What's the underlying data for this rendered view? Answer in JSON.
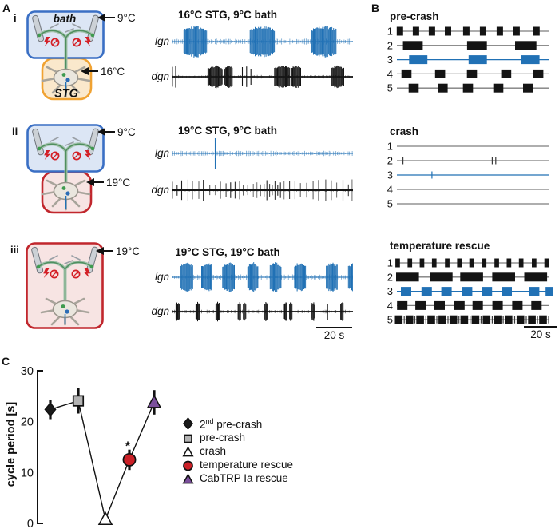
{
  "colors": {
    "blue": "#2171b5",
    "black": "#141414",
    "gray_line": "#7d7d7d",
    "bath_border": "#3a6fc4",
    "bath_fill": "#dce6f5",
    "stg_orange_border": "#f0a232",
    "stg_orange_fill": "#fae8cc",
    "red_border": "#c1272d",
    "red_fill": "#f7e4e3",
    "bolt_red": "#d42027",
    "nerve_green": "#4f8f5f",
    "nerve_light": "#a3c2ac",
    "electrode_fill": "#ccd1d6",
    "electrode_stroke": "#70757c",
    "ganglion_fill": "#eae6de",
    "ganglion_stroke": "#9a958c"
  },
  "panelA": {
    "label": "A",
    "scalebar_label": "20 s",
    "subpanels": [
      {
        "index": "i",
        "bath_label": "bath",
        "stg_label": "STG",
        "top_temp": "9°C",
        "mid_temp": "16°C",
        "stg_box": "orange",
        "title": "16°C STG, 9°C bath",
        "trace1_label": "lgn",
        "trace2_label": "dgn",
        "lgn": {
          "color": "blue",
          "seed": 11,
          "noise": 2.4,
          "baseWidth": 1.1,
          "bursts": [
            {
              "c": 0.13,
              "w": 0.125,
              "h": 1.0
            },
            {
              "c": 0.5,
              "w": 0.135,
              "h": 1.0
            },
            {
              "c": 0.84,
              "w": 0.135,
              "h": 1.0
            }
          ]
        },
        "dgn": {
          "color": "black",
          "seed": 21,
          "noise": 1.4,
          "baseWidth": 1.7,
          "bursts": [
            {
              "c": 0.24,
              "w": 0.08,
              "h": 0.72
            },
            {
              "c": 0.315,
              "w": 0.045,
              "h": 0.72
            },
            {
              "c": 0.61,
              "w": 0.085,
              "h": 0.72
            },
            {
              "c": 0.688,
              "w": 0.055,
              "h": 0.72
            },
            {
              "c": 0.915,
              "w": 0.07,
              "h": 0.72
            }
          ],
          "spikes": [
            {
              "x": 0.004,
              "h": 0.62
            },
            {
              "x": 0.022,
              "h": 0.68
            },
            {
              "x": 0.39,
              "h": 0.6
            },
            {
              "x": 0.413,
              "h": 0.64
            },
            {
              "x": 0.437,
              "h": 0.5
            }
          ]
        }
      },
      {
        "index": "ii",
        "top_temp": "9°C",
        "mid_temp": "19°C",
        "stg_box": "red",
        "title": "19°C STG, 9°C bath",
        "trace1_label": "lgn",
        "trace2_label": "dgn",
        "lgn": {
          "color": "blue",
          "seed": 31,
          "noise": 2.1,
          "baseWidth": 1.1,
          "spikes": [
            {
              "x": 0.24,
              "h": 0.95
            }
          ]
        },
        "dgn": {
          "color": "black",
          "seed": 41,
          "noise": 1.2,
          "baseWidth": 1.9,
          "tonic": [
            0.005,
            0.03,
            0.055,
            0.09,
            0.115,
            0.15,
            0.175,
            0.21,
            0.24,
            0.27,
            0.3,
            0.325,
            0.35,
            0.375,
            0.395,
            0.42,
            0.45,
            0.47,
            0.49,
            0.51,
            0.525,
            0.54,
            0.555,
            0.57,
            0.585,
            0.6,
            0.62,
            0.65,
            0.68,
            0.71,
            0.745,
            0.78,
            0.81,
            0.85,
            0.88,
            0.91,
            0.945,
            0.975,
            0.995
          ]
        }
      },
      {
        "index": "iii",
        "top_temp": "19°C",
        "stg_box": "one",
        "title": "19°C STG, 19°C bath",
        "trace1_label": "lgn",
        "trace2_label": "dgn",
        "lgn": {
          "color": "blue",
          "seed": 51,
          "noise": 2.2,
          "baseWidth": 1.1,
          "bursts": [
            {
              "c": 0.085,
              "w": 0.068,
              "h": 0.95
            },
            {
              "c": 0.195,
              "w": 0.06,
              "h": 0.95
            },
            {
              "c": 0.315,
              "w": 0.068,
              "h": 0.95
            },
            {
              "c": 0.45,
              "w": 0.06,
              "h": 0.95
            },
            {
              "c": 0.575,
              "w": 0.064,
              "h": 0.95
            },
            {
              "c": 0.71,
              "w": 0.064,
              "h": 0.95
            },
            {
              "c": 0.885,
              "w": 0.064,
              "h": 0.95
            },
            {
              "c": 1.0,
              "w": 0.05,
              "h": 0.95
            }
          ]
        },
        "dgn": {
          "color": "black",
          "seed": 61,
          "noise": 1.5,
          "baseWidth": 1.7,
          "bursts": [
            {
              "c": 0.035,
              "w": 0.022,
              "h": 0.62
            },
            {
              "c": 0.145,
              "w": 0.022,
              "h": 0.62
            },
            {
              "c": 0.255,
              "w": 0.022,
              "h": 0.62
            },
            {
              "c": 0.375,
              "w": 0.018,
              "h": 0.62
            },
            {
              "c": 0.402,
              "w": 0.014,
              "h": 0.62
            },
            {
              "c": 0.52,
              "w": 0.02,
              "h": 0.62
            },
            {
              "c": 0.63,
              "w": 0.018,
              "h": 0.62
            },
            {
              "c": 0.657,
              "w": 0.014,
              "h": 0.62
            },
            {
              "c": 0.78,
              "w": 0.02,
              "h": 0.62
            },
            {
              "c": 0.94,
              "w": 0.016,
              "h": 0.62
            }
          ],
          "spikes": [
            {
              "x": 0.86,
              "h": 0.5
            }
          ]
        }
      }
    ]
  },
  "panelB": {
    "label": "B",
    "scalebar_label": "20 s",
    "groups": [
      {
        "title": "pre-crash",
        "rows": [
          {
            "num": "1",
            "blocks": [
              {
                "c": 0.02,
                "w": 0.042
              },
              {
                "c": 0.125,
                "w": 0.042
              },
              {
                "c": 0.23,
                "w": 0.042
              },
              {
                "c": 0.335,
                "w": 0.042
              },
              {
                "c": 0.455,
                "w": 0.042
              },
              {
                "c": 0.565,
                "w": 0.042
              },
              {
                "c": 0.675,
                "w": 0.042
              },
              {
                "c": 0.785,
                "w": 0.042
              },
              {
                "c": 0.915,
                "w": 0.042
              }
            ]
          },
          {
            "num": "2",
            "blocks": [
              {
                "c": 0.105,
                "w": 0.13
              },
              {
                "c": 0.525,
                "w": 0.13
              },
              {
                "c": 0.845,
                "w": 0.14
              }
            ]
          },
          {
            "num": "3",
            "blue": true,
            "blocks": [
              {
                "c": 0.14,
                "w": 0.12
              },
              {
                "c": 0.53,
                "w": 0.12
              },
              {
                "c": 0.875,
                "w": 0.12
              }
            ]
          },
          {
            "num": "4",
            "blocks": [
              {
                "c": 0.063,
                "w": 0.066
              },
              {
                "c": 0.283,
                "w": 0.066
              },
              {
                "c": 0.492,
                "w": 0.066
              },
              {
                "c": 0.717,
                "w": 0.066
              },
              {
                "c": 0.927,
                "w": 0.066
              }
            ]
          },
          {
            "num": "5",
            "blocks": [
              {
                "c": 0.11,
                "w": 0.066
              },
              {
                "c": 0.3,
                "w": 0.066
              },
              {
                "c": 0.466,
                "w": 0.066
              },
              {
                "c": 0.665,
                "w": 0.066
              },
              {
                "c": 0.86,
                "w": 0.066
              }
            ]
          }
        ]
      },
      {
        "title": "crash",
        "rows": [
          {
            "num": "1"
          },
          {
            "num": "2",
            "ticks": [
              0.04,
              0.625,
              0.648
            ]
          },
          {
            "num": "3",
            "blue": true,
            "ticks": [
              0.23
            ]
          },
          {
            "num": "4"
          },
          {
            "num": "5"
          }
        ]
      },
      {
        "title": "temperature rescue",
        "rows": [
          {
            "num": "1",
            "blocks": [
              {
                "c": 0.005,
                "w": 0.03
              },
              {
                "c": 0.085,
                "w": 0.03
              },
              {
                "c": 0.165,
                "w": 0.03
              },
              {
                "c": 0.245,
                "w": 0.03
              },
              {
                "c": 0.33,
                "w": 0.03
              },
              {
                "c": 0.41,
                "w": 0.03
              },
              {
                "c": 0.49,
                "w": 0.03
              },
              {
                "c": 0.572,
                "w": 0.03
              },
              {
                "c": 0.655,
                "w": 0.03
              },
              {
                "c": 0.735,
                "w": 0.03
              },
              {
                "c": 0.815,
                "w": 0.03
              },
              {
                "c": 0.9,
                "w": 0.03
              },
              {
                "c": 0.982,
                "w": 0.03
              }
            ]
          },
          {
            "num": "2",
            "blocks": [
              {
                "c": 0.07,
                "w": 0.15
              },
              {
                "c": 0.29,
                "w": 0.15
              },
              {
                "c": 0.49,
                "w": 0.15
              },
              {
                "c": 0.7,
                "w": 0.15
              },
              {
                "c": 0.91,
                "w": 0.15
              }
            ]
          },
          {
            "num": "3",
            "blue": true,
            "blocks": [
              {
                "c": 0.06,
                "w": 0.068
              },
              {
                "c": 0.195,
                "w": 0.068
              },
              {
                "c": 0.325,
                "w": 0.068
              },
              {
                "c": 0.46,
                "w": 0.068
              },
              {
                "c": 0.59,
                "w": 0.068
              },
              {
                "c": 0.72,
                "w": 0.068
              },
              {
                "c": 0.9,
                "w": 0.068
              },
              {
                "c": 1.0,
                "w": 0.05
              }
            ]
          },
          {
            "num": "4",
            "blocks": [
              {
                "c": 0.035,
                "w": 0.068
              },
              {
                "c": 0.155,
                "w": 0.068
              },
              {
                "c": 0.28,
                "w": 0.068
              },
              {
                "c": 0.41,
                "w": 0.068
              },
              {
                "c": 0.53,
                "w": 0.068
              },
              {
                "c": 0.66,
                "w": 0.068
              },
              {
                "c": 0.79,
                "w": 0.068
              },
              {
                "c": 0.915,
                "w": 0.068
              }
            ]
          },
          {
            "num": "5",
            "blocks": [
              {
                "c": 0.012,
                "w": 0.05
              },
              {
                "c": 0.082,
                "w": 0.05
              },
              {
                "c": 0.152,
                "w": 0.05
              },
              {
                "c": 0.225,
                "w": 0.05
              },
              {
                "c": 0.298,
                "w": 0.05
              },
              {
                "c": 0.37,
                "w": 0.05
              },
              {
                "c": 0.442,
                "w": 0.05
              },
              {
                "c": 0.515,
                "w": 0.05
              },
              {
                "c": 0.588,
                "w": 0.05
              },
              {
                "c": 0.66,
                "w": 0.05
              },
              {
                "c": 0.732,
                "w": 0.05
              },
              {
                "c": 0.81,
                "w": 0.05
              },
              {
                "c": 0.885,
                "w": 0.05
              },
              {
                "c": 0.958,
                "w": 0.05
              }
            ],
            "ticks": [
              0.048,
              0.118,
              0.19,
              0.262,
              0.335,
              0.407,
              0.48,
              0.552,
              0.625,
              0.697,
              0.772,
              0.848,
              0.922,
              0.995
            ]
          }
        ]
      }
    ]
  },
  "panelC": {
    "label": "C",
    "ylabel": "cycle period [s]",
    "legend": [
      {
        "marker": "diamond",
        "color": "#1a1a1a",
        "label_pre": "2",
        "label_sup": "nd",
        "label_rest": " pre-crash"
      },
      {
        "marker": "square",
        "color": "#b3b3b3",
        "label_rest": "pre-crash"
      },
      {
        "marker": "triangle-open",
        "color": "#ffffff",
        "label_rest": "crash"
      },
      {
        "marker": "circle",
        "color": "#cb2027",
        "label_rest": "temperature rescue"
      },
      {
        "marker": "triangle",
        "color": "#7b4f9c",
        "label_rest": "CabTRP Ia rescue"
      }
    ]
  },
  "chart_data": {
    "type": "scatter-line",
    "title": "",
    "xlabel": "",
    "ylabel": "cycle period [s]",
    "ylim": [
      0,
      30
    ],
    "yticks": [
      0,
      10,
      20,
      30
    ],
    "grid": false,
    "legend_position": "right",
    "categories": [
      "2nd pre-crash",
      "pre-crash",
      "crash",
      "temperature rescue",
      "CabTRP Ia rescue"
    ],
    "points": [
      {
        "label": "2nd pre-crash",
        "marker": "diamond",
        "color": "#1a1a1a",
        "y": 22.4,
        "err": 1.9
      },
      {
        "label": "pre-crash",
        "marker": "square",
        "color": "#b3b3b3",
        "y": 24.1,
        "err": 2.5
      },
      {
        "label": "crash",
        "marker": "triangle-open",
        "color": "#ffffff",
        "y": 0.8,
        "err": 0
      },
      {
        "label": "temperature rescue",
        "marker": "circle",
        "color": "#cb2027",
        "y": 12.5,
        "err": 2.0,
        "sig": "*"
      },
      {
        "label": "CabTRP Ia rescue",
        "marker": "triangle",
        "color": "#7b4f9c",
        "y": 23.8,
        "err": 2.4
      }
    ]
  }
}
